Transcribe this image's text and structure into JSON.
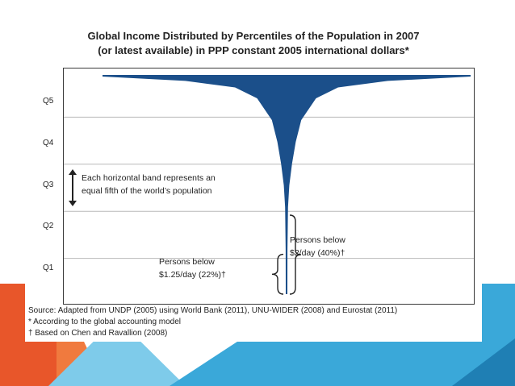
{
  "slide": {
    "colors": {
      "left_orange": "#E8562A",
      "right_blue": "#3AA8D9",
      "light_blue": "#7ECBEA",
      "dark_blue": "#1F7FB4",
      "plot_fill": "#1B4F8A"
    }
  },
  "chart_data": {
    "type": "area",
    "title": "Global Income Distributed by Percentiles of the Population in 2007",
    "subtitle": "(or latest available) in PPP constant 2005 international dollars*",
    "bands": [
      "Q5",
      "Q4",
      "Q3",
      "Q2",
      "Q1"
    ],
    "shape_profile": {
      "description_points": [
        {
          "population_from_top_pct": 0,
          "relative_width": 1.0
        },
        {
          "population_from_top_pct": 2,
          "relative_width": 0.55
        },
        {
          "population_from_top_pct": 5,
          "relative_width": 0.28
        },
        {
          "population_from_top_pct": 10,
          "relative_width": 0.16
        },
        {
          "population_from_top_pct": 20,
          "relative_width": 0.08
        },
        {
          "population_from_top_pct": 30,
          "relative_width": 0.05
        },
        {
          "population_from_top_pct": 40,
          "relative_width": 0.03
        },
        {
          "population_from_top_pct": 50,
          "relative_width": 0.015
        },
        {
          "population_from_top_pct": 60,
          "relative_width": 0.008
        },
        {
          "population_from_top_pct": 80,
          "relative_width": 0.005
        },
        {
          "population_from_top_pct": 100,
          "relative_width": 0.003
        }
      ]
    },
    "annotations": {
      "band_note_line1": "Each horizontal band represents an",
      "band_note_line2": "equal fifth of the world’s population",
      "below_2_line1": "Persons below",
      "below_2_line2": "$2/day (40%)†",
      "below_125_line1": "Persons below",
      "below_125_line2": "$1.25/day (22%)†",
      "below_2_share_pct": 40,
      "below_125_share_pct": 22
    },
    "sources": {
      "line1": "Source: Adapted from UNDP (2005) using World Bank (2011), UNU-WIDER (2008) and Eurostat (2011)",
      "line2": "* According to the global accounting model",
      "line3": "† Based on Chen and Ravallion (2008)"
    },
    "grid": true
  }
}
